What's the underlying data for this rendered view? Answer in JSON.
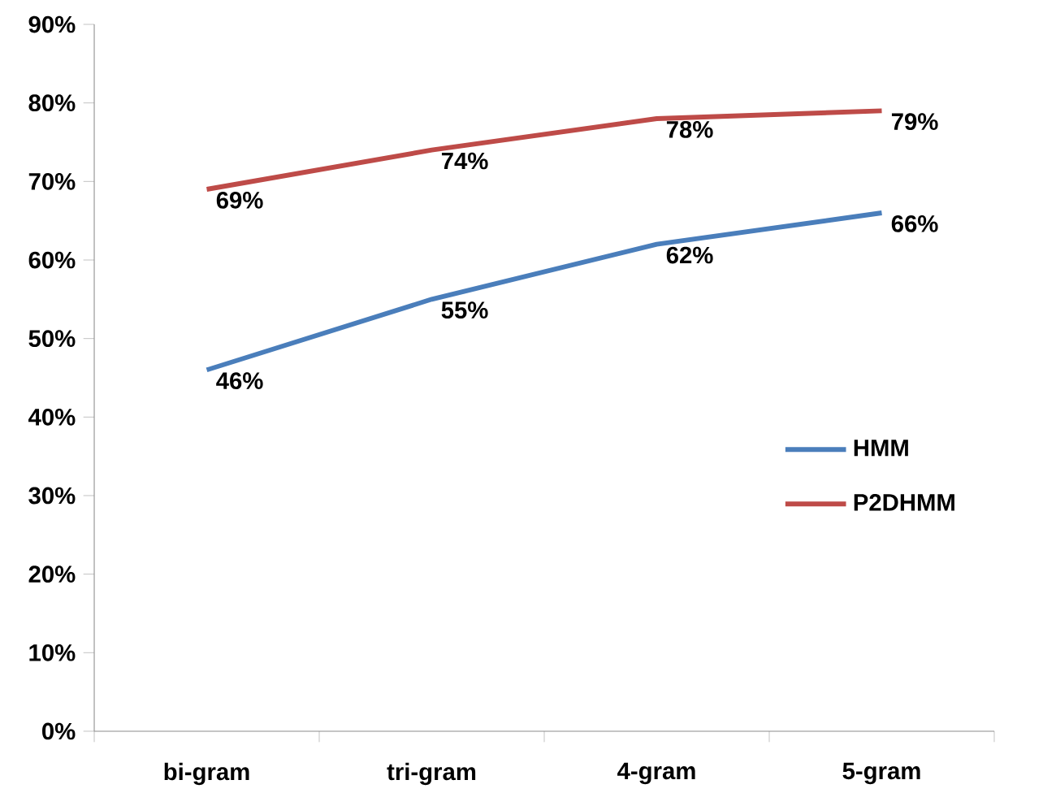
{
  "chart_data": {
    "type": "line",
    "categories": [
      "bi-gram",
      "tri-gram",
      "4-gram",
      "5-gram"
    ],
    "series": [
      {
        "name": "HMM",
        "color": "#4a7ebb",
        "values": [
          46,
          55,
          62,
          66
        ],
        "value_labels": [
          "46%",
          "55%",
          "62%",
          "66%"
        ]
      },
      {
        "name": "P2DHMM",
        "color": "#be4b48",
        "values": [
          69,
          74,
          78,
          79
        ],
        "value_labels": [
          "69%",
          "74%",
          "78%",
          "79%"
        ]
      }
    ],
    "ylim": [
      0,
      90
    ],
    "yticks": [
      {
        "value": 0,
        "label": "0%"
      },
      {
        "value": 10,
        "label": "10%"
      },
      {
        "value": 20,
        "label": "20%"
      },
      {
        "value": 30,
        "label": "30%"
      },
      {
        "value": 40,
        "label": "40%"
      },
      {
        "value": 50,
        "label": "50%"
      },
      {
        "value": 60,
        "label": "60%"
      },
      {
        "value": 70,
        "label": "70%"
      },
      {
        "value": 80,
        "label": "80%"
      },
      {
        "value": 90,
        "label": "90%"
      }
    ],
    "grid": false,
    "legend": "right",
    "marker": "none",
    "line_style": "solid"
  }
}
